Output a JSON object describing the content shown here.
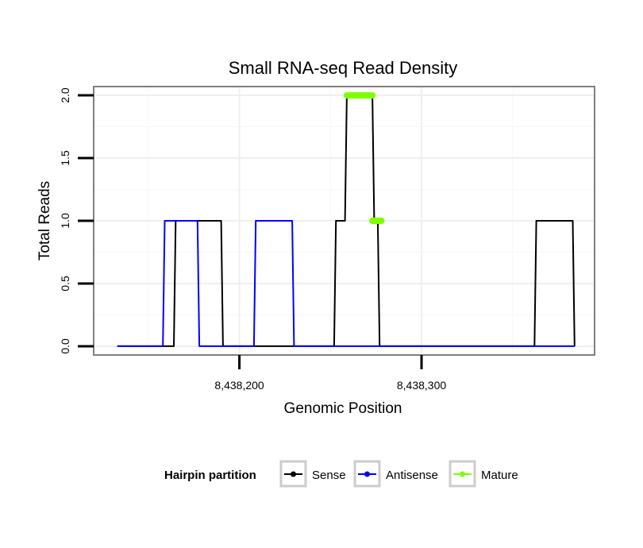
{
  "chart_data": {
    "type": "line",
    "title": "Small RNA-seq Read Density",
    "xlabel": "Genomic Position",
    "ylabel": "Total Reads",
    "xlim": [
      8438120,
      8438395
    ],
    "ylim": [
      -0.07,
      2.07
    ],
    "x_ticks": [
      8438200,
      8438300
    ],
    "x_tick_labels": [
      "8,438,200",
      "8,438,300"
    ],
    "y_ticks": [
      0,
      0.5,
      1,
      1.5,
      2
    ],
    "y_tick_labels": [
      "0.0",
      "0.5",
      "1.0",
      "1.5",
      "2.0"
    ],
    "grid": true,
    "legend": {
      "title": "Hairpin partition",
      "position": "bottom",
      "entries": [
        "Sense",
        "Antisense",
        "Mature"
      ]
    },
    "series": [
      {
        "name": "Sense",
        "color": "#000000",
        "x": [
          8438133,
          8438164,
          8438165,
          8438183,
          8438184,
          8438190,
          8438191,
          8438252,
          8438253,
          8438258,
          8438259,
          8438272,
          8438273,
          8438274,
          8438276,
          8438277,
          8438362,
          8438363,
          8438383,
          8438384
        ],
        "values": [
          0,
          0,
          1,
          1,
          1,
          1,
          0,
          0,
          1,
          1,
          2,
          2,
          2,
          1,
          1,
          0,
          0,
          1,
          1,
          0
        ]
      },
      {
        "name": "Antisense",
        "color": "#0000ff",
        "x": [
          8438133,
          8438158,
          8438159,
          8438177,
          8438178,
          8438208,
          8438209,
          8438229,
          8438230,
          8438383,
          8438384
        ],
        "values": [
          0,
          0,
          1,
          1,
          0,
          0,
          1,
          1,
          0,
          0,
          0
        ]
      },
      {
        "name": "Mature",
        "color": "#7fff00",
        "segments": [
          {
            "x": [
              8438259,
              8438273
            ],
            "values": [
              2,
              2
            ]
          },
          {
            "x": [
              8438273,
              8438278
            ],
            "values": [
              1,
              1
            ]
          }
        ]
      }
    ]
  }
}
